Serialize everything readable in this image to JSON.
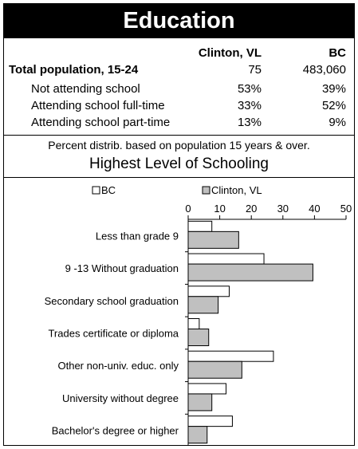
{
  "title": "Education",
  "table": {
    "columns": [
      "Clinton, VL",
      "BC"
    ],
    "rows": [
      {
        "label": "Total population, 15-24",
        "c1": "75",
        "c2": "483,060"
      },
      {
        "label": "Not attending school",
        "c1": "53%",
        "c2": "39%"
      },
      {
        "label": "Attending school full-time",
        "c1": "33%",
        "c2": "52%"
      },
      {
        "label": "Attending school part-time",
        "c1": "13%",
        "c2": "9%"
      }
    ]
  },
  "note": "Percent distrib. based on population 15 years & over.",
  "chart_title": "Highest Level of Schooling",
  "chart_data": {
    "type": "bar",
    "orientation": "horizontal",
    "categories": [
      "Less than grade 9",
      "9 -13 Without graduation",
      "Secondary school graduation",
      "Trades certificate or diploma",
      "Other non-univ. educ. only",
      "University without degree",
      "Bachelor's degree or higher"
    ],
    "series": [
      {
        "name": "BC",
        "color": "#ffffff",
        "values": [
          7.5,
          24,
          13,
          3.5,
          27,
          12,
          14
        ]
      },
      {
        "name": "Clinton, VL",
        "color": "#c0c0c0",
        "values": [
          16,
          39.5,
          9.5,
          6.5,
          17,
          7.5,
          6
        ]
      }
    ],
    "xlim": [
      0,
      50
    ],
    "xticks": [
      0,
      10,
      20,
      30,
      40,
      50
    ],
    "legend_position": "top"
  }
}
